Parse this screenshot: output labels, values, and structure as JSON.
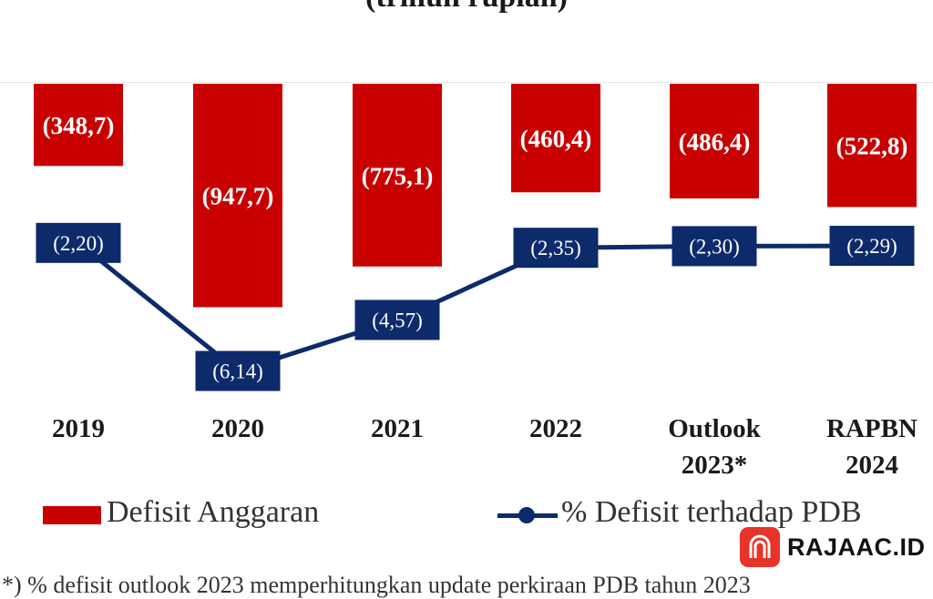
{
  "header": {
    "title_fragment": "(triliun rupiah)"
  },
  "chart_data": {
    "type": "bar",
    "categories": [
      [
        "2019"
      ],
      [
        "2020"
      ],
      [
        "2021"
      ],
      [
        "2022"
      ],
      [
        "Outlook",
        "2023*"
      ],
      [
        "RAPBN",
        "2024"
      ]
    ],
    "series": [
      {
        "name": "Defisit Anggaran",
        "type": "bar",
        "values": [
          348.7,
          947.7,
          775.1,
          460.4,
          486.4,
          522.8
        ],
        "labels": [
          "(348,7)",
          "(947,7)",
          "(775,1)",
          "(460,4)",
          "(486,4)",
          "(522,8)"
        ],
        "color": "#C80000"
      },
      {
        "name": "% Defisit terhadap PDB",
        "type": "line",
        "values": [
          2.2,
          6.14,
          4.57,
          2.35,
          2.3,
          2.29
        ],
        "labels": [
          "(2,20)",
          "(6,14)",
          "(4,57)",
          "(2,35)",
          "(2,30)",
          "(2,29)"
        ],
        "color": "#0D2A6B"
      }
    ],
    "bars_hang_from_top": true,
    "legend_position": "bottom",
    "grid": false
  },
  "legend": {
    "bar_label": "Defisit Anggaran",
    "line_label": "% Defisit terhadap PDB"
  },
  "footnote": "*) % defisit outlook 2023 memperhitungkan update perkiraan PDB tahun 2023",
  "watermark": {
    "text": "RAJAAC.ID"
  },
  "colors": {
    "bar": "#C80000",
    "line": "#0D2A6B",
    "label_text": "#ffffff",
    "category_text": "#1a1a1a"
  }
}
